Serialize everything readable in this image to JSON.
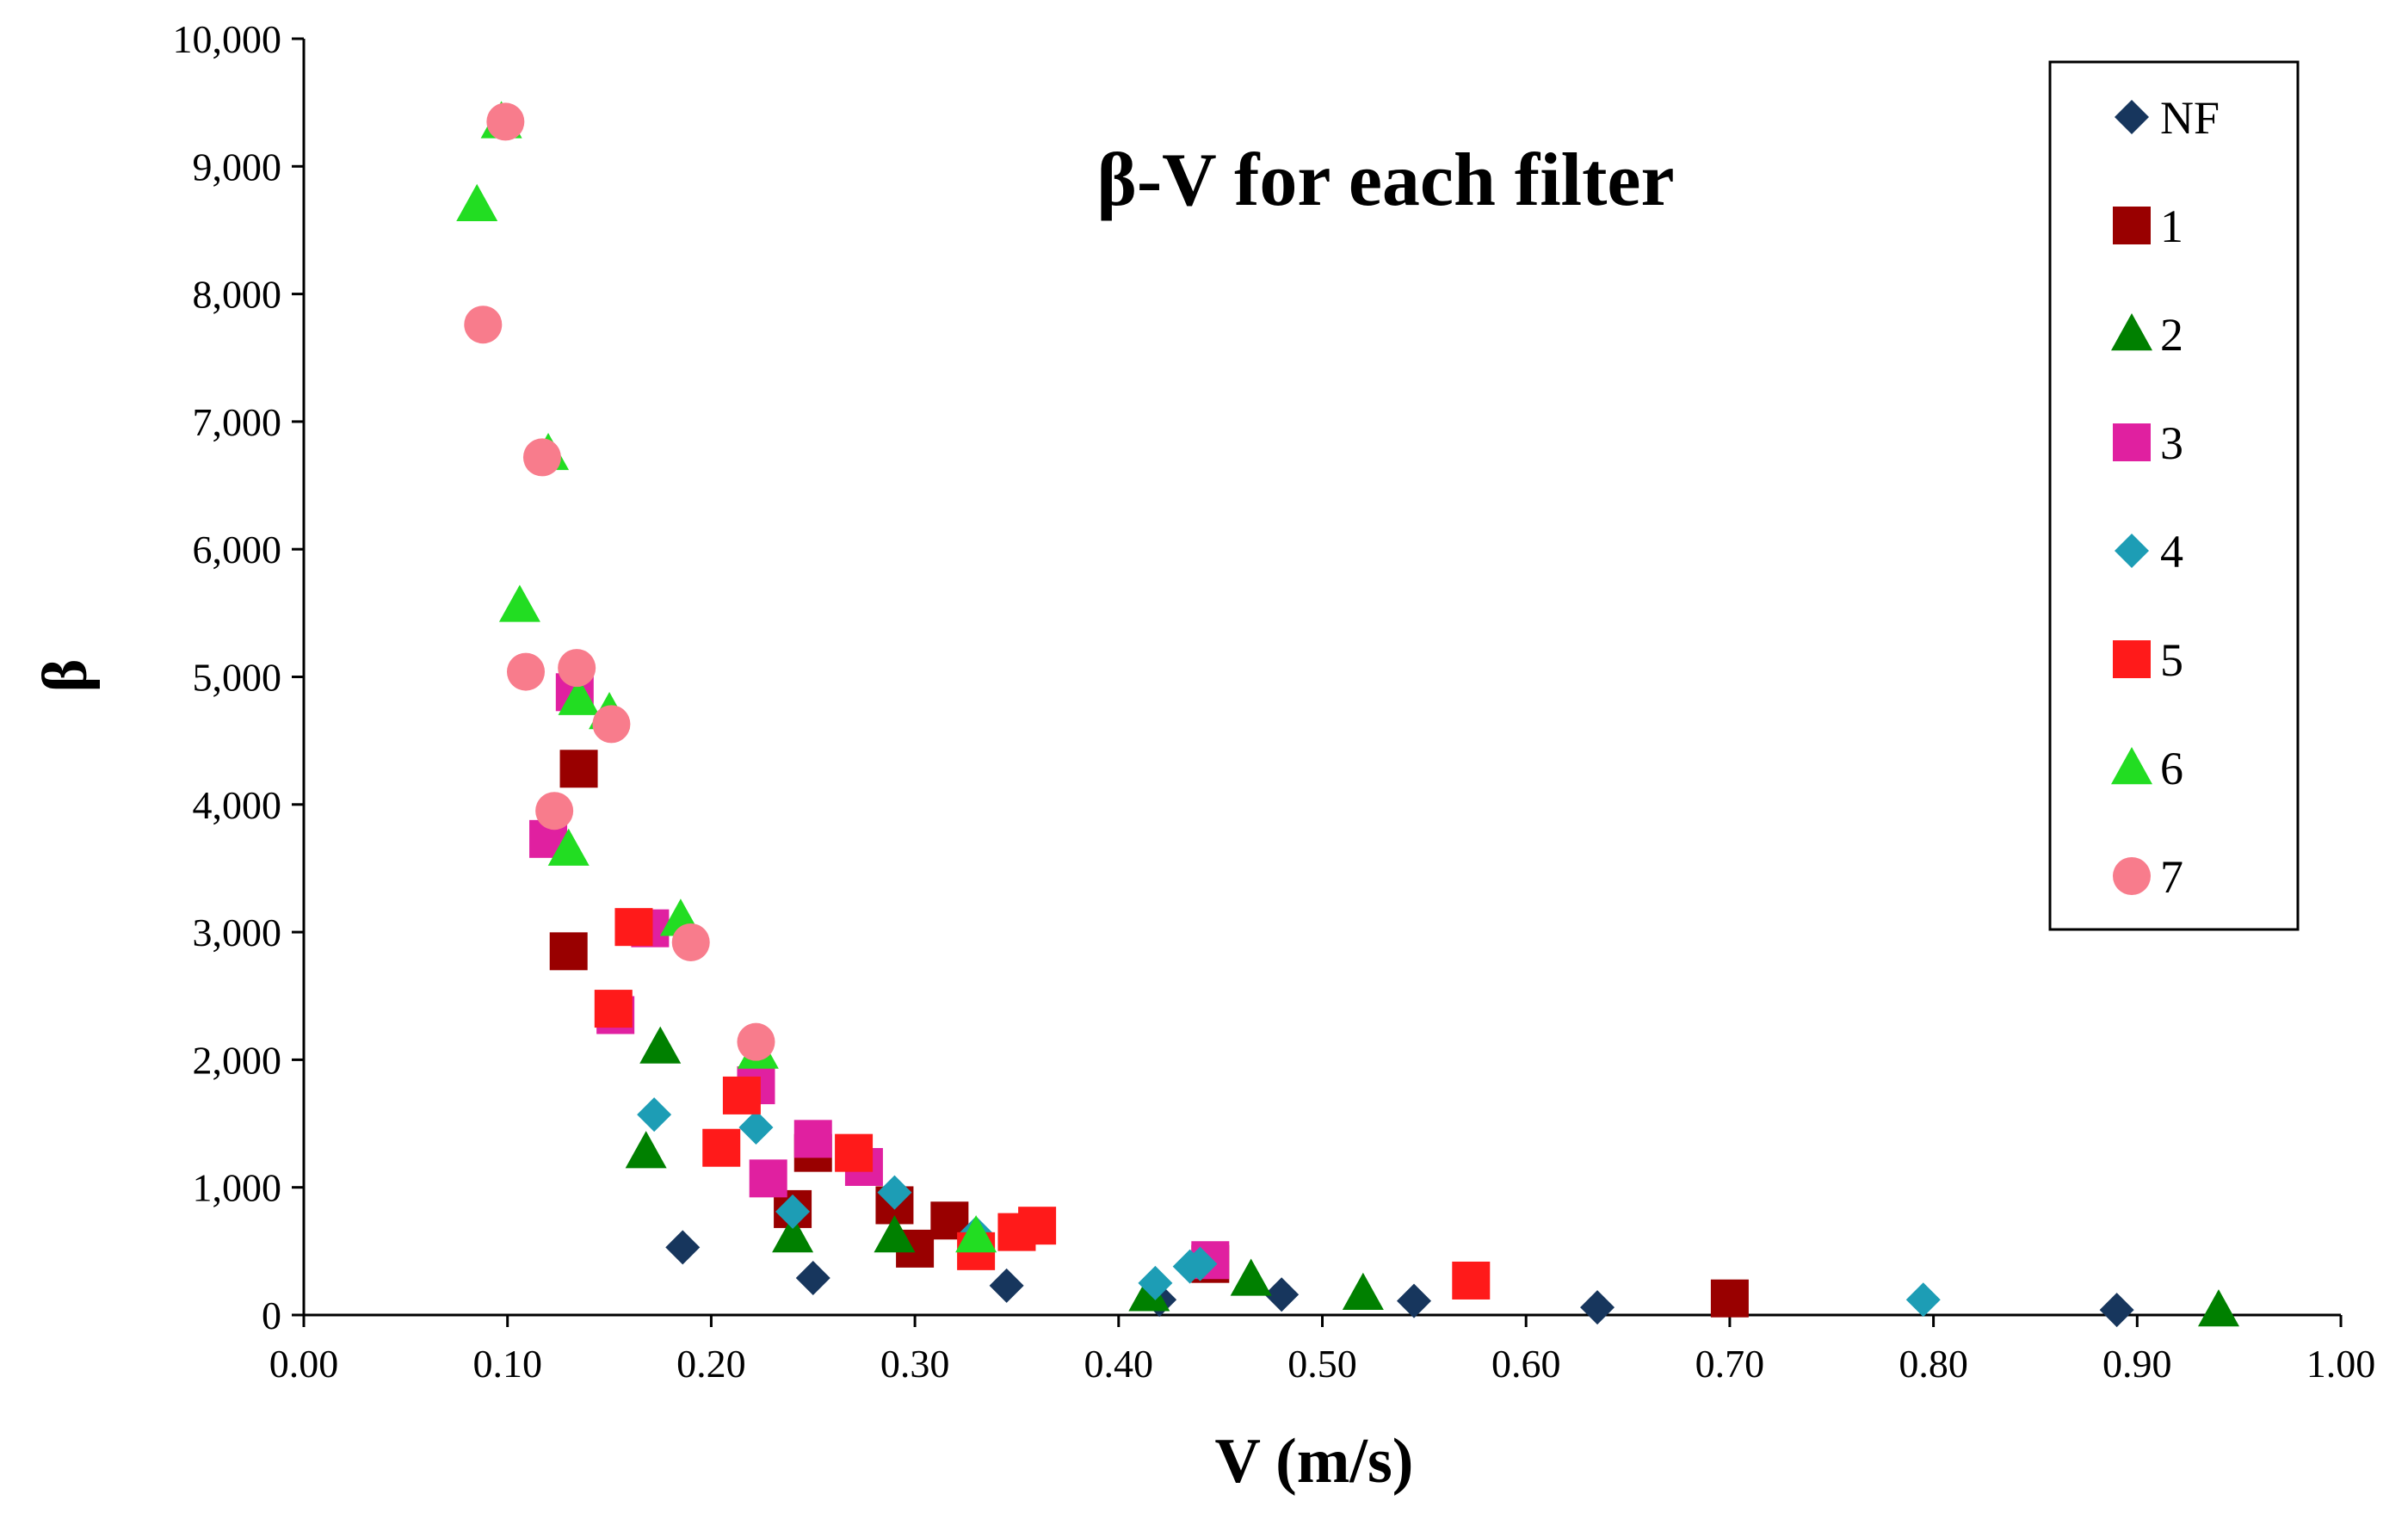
{
  "chart_data": {
    "type": "scatter",
    "title": "β-V for each filter",
    "xlabel": "V (m/s)",
    "ylabel": "β",
    "xlim": [
      0,
      1
    ],
    "ylim": [
      0,
      10000
    ],
    "xticks": [
      "0.00",
      "0.10",
      "0.20",
      "0.30",
      "0.40",
      "0.50",
      "0.60",
      "0.70",
      "0.80",
      "0.90",
      "1.00"
    ],
    "yticks": [
      "0",
      "1,000",
      "2,000",
      "3,000",
      "4,000",
      "5,000",
      "6,000",
      "7,000",
      "8,000",
      "9,000",
      "10,000"
    ],
    "grid": false,
    "legend_position": "top-right",
    "series": [
      {
        "name": "NF",
        "marker": "diamond",
        "color": "#17365D",
        "points": [
          [
            0.186,
            530
          ],
          [
            0.25,
            290
          ],
          [
            0.345,
            230
          ],
          [
            0.42,
            120
          ],
          [
            0.48,
            160
          ],
          [
            0.545,
            110
          ],
          [
            0.635,
            60
          ],
          [
            0.89,
            40
          ]
        ]
      },
      {
        "name": "1",
        "marker": "square",
        "color": "#990000",
        "points": [
          [
            0.13,
            2850
          ],
          [
            0.135,
            4280
          ],
          [
            0.24,
            830
          ],
          [
            0.25,
            1270
          ],
          [
            0.29,
            860
          ],
          [
            0.3,
            520
          ],
          [
            0.317,
            740
          ],
          [
            0.445,
            400
          ],
          [
            0.7,
            130
          ]
        ]
      },
      {
        "name": "2",
        "marker": "triangle",
        "color": "#008000",
        "points": [
          [
            0.168,
            1280
          ],
          [
            0.175,
            2100
          ],
          [
            0.24,
            620
          ],
          [
            0.29,
            620
          ],
          [
            0.415,
            160
          ],
          [
            0.465,
            280
          ],
          [
            0.52,
            170
          ],
          [
            0.94,
            40
          ]
        ]
      },
      {
        "name": "3",
        "marker": "square",
        "color": "#E020A0",
        "points": [
          [
            0.12,
            3730
          ],
          [
            0.133,
            4880
          ],
          [
            0.17,
            3030
          ],
          [
            0.153,
            2350
          ],
          [
            0.222,
            1800
          ],
          [
            0.228,
            1070
          ],
          [
            0.25,
            1380
          ],
          [
            0.275,
            1160
          ],
          [
            0.445,
            430
          ]
        ]
      },
      {
        "name": "4",
        "marker": "diamond",
        "color": "#1D9DB5",
        "points": [
          [
            0.172,
            1570
          ],
          [
            0.222,
            1470
          ],
          [
            0.24,
            810
          ],
          [
            0.29,
            960
          ],
          [
            0.33,
            640
          ],
          [
            0.418,
            250
          ],
          [
            0.435,
            380
          ],
          [
            0.44,
            400
          ],
          [
            0.795,
            120
          ]
        ]
      },
      {
        "name": "5",
        "marker": "square",
        "color": "#FF1A1A",
        "points": [
          [
            0.152,
            2400
          ],
          [
            0.162,
            3040
          ],
          [
            0.205,
            1310
          ],
          [
            0.215,
            1720
          ],
          [
            0.27,
            1270
          ],
          [
            0.33,
            500
          ],
          [
            0.35,
            650
          ],
          [
            0.36,
            700
          ],
          [
            0.573,
            270
          ]
        ]
      },
      {
        "name": "6",
        "marker": "triangle",
        "color": "#22DD22",
        "points": [
          [
            0.085,
            8700
          ],
          [
            0.097,
            9350
          ],
          [
            0.106,
            5560
          ],
          [
            0.12,
            6750
          ],
          [
            0.13,
            3650
          ],
          [
            0.135,
            4830
          ],
          [
            0.15,
            4720
          ],
          [
            0.185,
            3100
          ],
          [
            0.223,
            2060
          ],
          [
            0.33,
            620
          ]
        ]
      },
      {
        "name": "7",
        "marker": "circle",
        "color": "#F87C8C",
        "points": [
          [
            0.088,
            7760
          ],
          [
            0.099,
            9350
          ],
          [
            0.109,
            5040
          ],
          [
            0.117,
            6720
          ],
          [
            0.123,
            3950
          ],
          [
            0.134,
            5070
          ],
          [
            0.151,
            4630
          ],
          [
            0.19,
            2920
          ],
          [
            0.222,
            2140
          ]
        ]
      }
    ]
  }
}
